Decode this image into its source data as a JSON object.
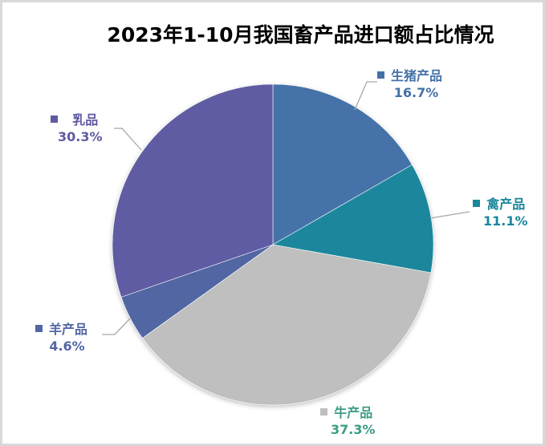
{
  "chart_data": {
    "type": "pie",
    "title": "2023年1-10月我国畜产品进口额占比情况",
    "slices": [
      {
        "name": "生猪产品",
        "value": 16.7,
        "label": "16.7%",
        "color": "#4472a8",
        "text_color": "#4472a8"
      },
      {
        "name": "禽产品",
        "value": 11.1,
        "label": "11.1%",
        "color": "#1a879c",
        "text_color": "#1a879c"
      },
      {
        "name": "牛产品",
        "value": 37.3,
        "label": "37.3%",
        "color": "#bfbfbf",
        "text_color": "#3c9c86"
      },
      {
        "name": "羊产品",
        "value": 4.6,
        "label": "4.6%",
        "color": "#5166a2",
        "text_color": "#5166a2"
      },
      {
        "name": "乳品",
        "value": 30.3,
        "label": "30.3%",
        "color": "#5f5ba3",
        "text_color": "#5f5ba3"
      }
    ],
    "start_angle_deg": 0,
    "direction": "clockwise",
    "legend": "none (data labels with category name and percentage)"
  },
  "labels": {
    "pork": {
      "name": "生猪产品",
      "pct": "16.7%"
    },
    "poultry": {
      "name": "禽产品",
      "pct": "11.1%"
    },
    "beef": {
      "name": "牛产品",
      "pct": "37.3%"
    },
    "mutton": {
      "name": "羊产品",
      "pct": "4.6%"
    },
    "dairy": {
      "name": "乳品",
      "pct": "30.3%"
    }
  }
}
